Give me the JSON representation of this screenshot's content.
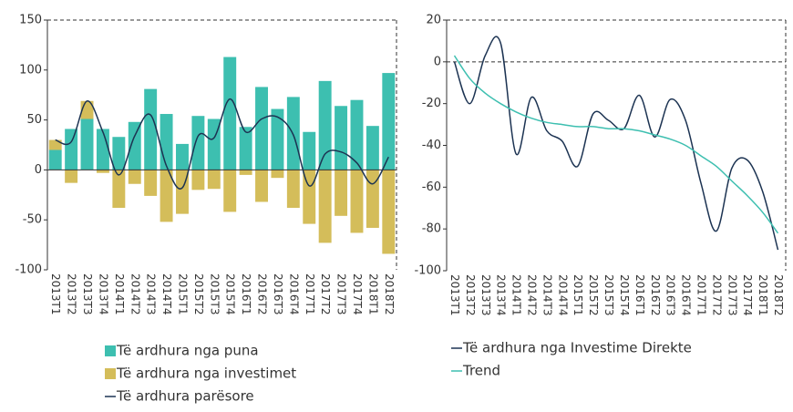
{
  "chart_data": [
    {
      "type": "bar",
      "stacked": true,
      "categories": [
        "2013T1",
        "2013T2",
        "2013T3",
        "2013T4",
        "2014T1",
        "2014T2",
        "2014T3",
        "2014T4",
        "2015T1",
        "2015T2",
        "2015T3",
        "2015T4",
        "2016T1",
        "2016T2",
        "2016T3",
        "2016T4",
        "2017T1",
        "2017T2",
        "2017T3",
        "2017T4",
        "2018T1",
        "2018T2"
      ],
      "series": [
        {
          "name": "Të ardhura nga puna",
          "type": "bar",
          "color": "#3dbfb0",
          "values": [
            20,
            41,
            51,
            41,
            33,
            48,
            81,
            56,
            26,
            54,
            51,
            113,
            43,
            83,
            61,
            73,
            38,
            89,
            64,
            70,
            44,
            97
          ]
        },
        {
          "name": "Të ardhura nga investimet",
          "type": "bar",
          "color": "#d4bd5a",
          "values": [
            10,
            -13,
            18,
            -3,
            -38,
            -14,
            -26,
            -52,
            -44,
            -20,
            -19,
            -42,
            -5,
            -32,
            -8,
            -38,
            -54,
            -73,
            -46,
            -63,
            -58,
            -84
          ]
        },
        {
          "name": "Të ardhura parësore",
          "type": "line",
          "color": "#1c3352",
          "values": [
            30,
            28,
            69,
            38,
            -5,
            34,
            55,
            4,
            -18,
            34,
            32,
            71,
            38,
            51,
            53,
            35,
            -16,
            16,
            18,
            7,
            -14,
            13
          ]
        }
      ],
      "ylim": [
        -100,
        150
      ],
      "yticks": [
        -100,
        -50,
        0,
        50,
        100,
        150
      ]
    },
    {
      "type": "line",
      "categories": [
        "2013T1",
        "2013T2",
        "2013T3",
        "2013T4",
        "2014T1",
        "2014T2",
        "2014T3",
        "2014T4",
        "2015T1",
        "2015T2",
        "2015T3",
        "2015T4",
        "2016T1",
        "2016T2",
        "2016T3",
        "2016T4",
        "2017T1",
        "2017T2",
        "2017T3",
        "2017T4",
        "2018T1",
        "2018T2"
      ],
      "series": [
        {
          "name": "Të ardhura nga Investime Direkte",
          "type": "line",
          "color": "#1c3352",
          "values": [
            0,
            -20,
            3,
            9,
            -44,
            -17,
            -33,
            -38,
            -50,
            -25,
            -28,
            -32,
            -16,
            -36,
            -18,
            -28,
            -58,
            -81,
            -51,
            -47,
            -62,
            -90
          ]
        },
        {
          "name": "Trend",
          "type": "line",
          "color": "#3dbfb0",
          "values": [
            3,
            -8,
            -15,
            -20,
            -24,
            -27,
            -29,
            -30,
            -31,
            -31,
            -32,
            -32,
            -33,
            -35,
            -37,
            -40,
            -45,
            -50,
            -57,
            -64,
            -72,
            -82
          ]
        }
      ],
      "ylim": [
        -100,
        20
      ],
      "yticks": [
        -100,
        -80,
        -60,
        -40,
        -20,
        0,
        20
      ]
    }
  ]
}
